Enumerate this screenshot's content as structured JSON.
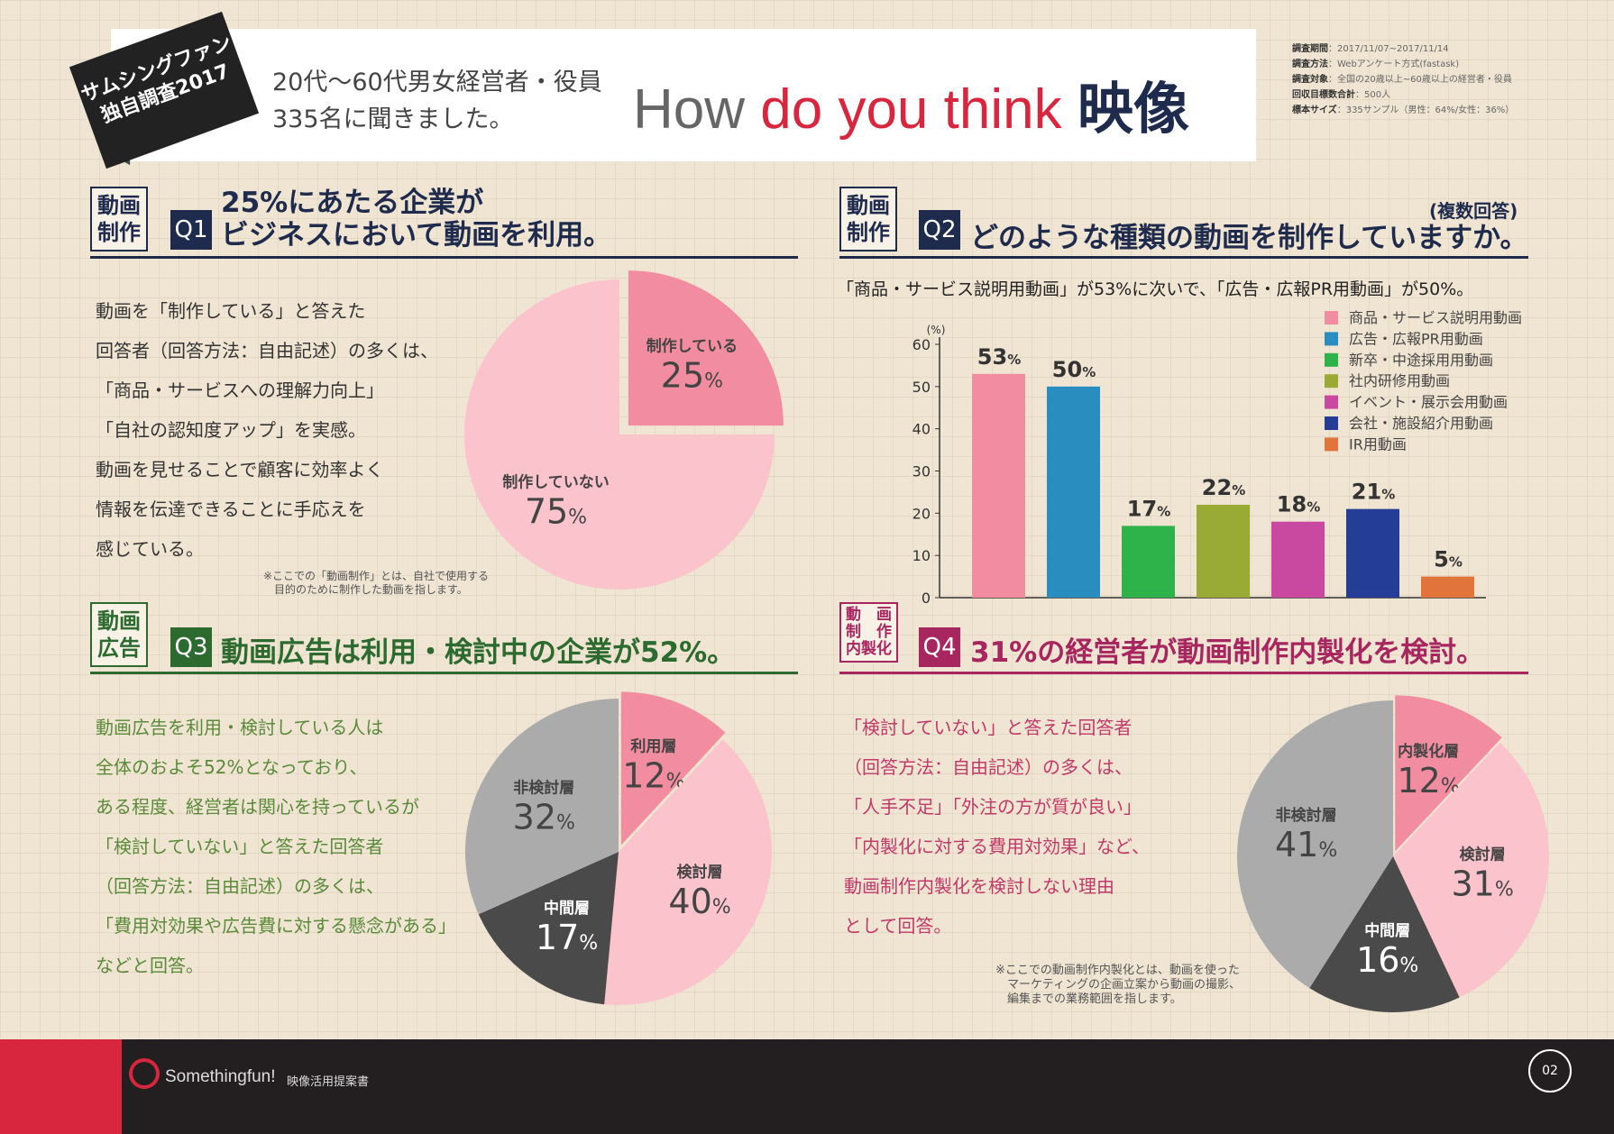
{
  "header": {
    "badge": "サムシングファン独自調査2017",
    "lead": [
      "20代～60代男女経営者・役員",
      "335名に聞きました。"
    ],
    "title": {
      "w1": "How ",
      "w2": "do you",
      "w3": " think",
      "w4": "映像"
    }
  },
  "survey": [
    {
      "k": "調査期間",
      "v": "2017/11/07~2017/11/14"
    },
    {
      "k": "調査方法",
      "v": "Webアンケート方式(fastask)"
    },
    {
      "k": "調査対象",
      "v": "全国の20歳以上~60歳以上の経営者・役員"
    },
    {
      "k": "回収目標数合計",
      "v": "500人"
    },
    {
      "k": "標本サイズ",
      "v": "335サンプル（男性：64%/女性：36%）"
    }
  ],
  "colors": {
    "navy": "#1f2b4d",
    "green": "#2d6a2f",
    "magenta": "#a8265f",
    "pink_dark": "#f28ca0",
    "pink_light": "#fbc3cc",
    "gray_dark": "#4a4a4a",
    "gray_light": "#ababab",
    "red": "#d7263d"
  },
  "q1": {
    "tag": [
      "動画",
      "制作"
    ],
    "num": "Q1",
    "title": [
      "25%にあたる企業が",
      "ビジネスにおいて動画を利用。"
    ],
    "body": [
      "動画を「制作している」と答えた",
      "回答者（回答方法：自由記述）の多くは、",
      "「商品・サービスへの理解力向上」",
      "「自社の認知度アップ」を実感。",
      "動画を見せることで顧客に効率よく",
      "情報を伝達できることに手応えを",
      "感じている。"
    ],
    "note": "※ここでの「動画制作」とは、自社で使用する\n　目的のために制作した動画を指します。"
  },
  "q2": {
    "tag": [
      "動画",
      "制作"
    ],
    "num": "Q2",
    "title": "どのような種類の動画を制作していますか。",
    "multi": "(複数回答)",
    "subtitle": "「商品・サービス説明用動画」が53%に次いで、「広告・広報PR用動画」が50%。"
  },
  "q3": {
    "tag": [
      "動画",
      "広告"
    ],
    "num": "Q3",
    "title": "動画広告は利用・検討中の企業が52%。",
    "body": [
      "動画広告を利用・検討している人は",
      "全体のおよそ52%となっており、",
      "ある程度、経営者は関心を持っているが",
      "「検討していない」と答えた回答者",
      "（回答方法：自由記述）の多くは、",
      "「費用対効果や広告費に対する懸念がある」",
      "などと回答。"
    ]
  },
  "q4": {
    "tag": [
      "動　画",
      "制　作",
      "内製化"
    ],
    "num": "Q4",
    "title": "31%の経営者が動画制作内製化を検討。",
    "body": [
      "「検討していない」と答えた回答者",
      "（回答方法：自由記述）の多くは、",
      "「人手不足」「外注の方が質が良い」",
      "「内製化に対する費用対効果」など、",
      "動画制作内製化を検討しない理由",
      "として回答。"
    ],
    "note": "※ここでの動画制作内製化とは、動画を使った\n　マーケティングの企画立案から動画の撮影、\n　編集までの業務範囲を指します。"
  },
  "chart_data": [
    {
      "type": "pie",
      "slices": [
        {
          "label": "制作している",
          "value": 25,
          "color": "#f28ca0"
        },
        {
          "label": "制作していない",
          "value": 75,
          "color": "#fbc3cc"
        }
      ]
    },
    {
      "type": "bar",
      "ylabel": "(%)",
      "ylim": [
        0,
        60
      ],
      "yticks": [
        0,
        10,
        20,
        30,
        40,
        50,
        60
      ],
      "legend_position": "top-right",
      "categories": [
        "商品・サービス説明用動画",
        "広告・広報PR用動画",
        "新卒・中途採用用動画",
        "社内研修用動画",
        "イベント・展示会用動画",
        "会社・施設紹介用動画",
        "IR用動画"
      ],
      "values": [
        53,
        50,
        17,
        22,
        18,
        21,
        5
      ],
      "colors": [
        "#f28ca0",
        "#2a8dbf",
        "#2eb34a",
        "#9aab35",
        "#c949a0",
        "#243d96",
        "#e0743a"
      ]
    },
    {
      "type": "pie",
      "slices": [
        {
          "label": "利用層",
          "value": 12,
          "color": "#f28ca0"
        },
        {
          "label": "検討層",
          "value": 40,
          "color": "#fbc3cc"
        },
        {
          "label": "中間層",
          "value": 17,
          "color": "#4a4a4a"
        },
        {
          "label": "非検討層",
          "value": 32,
          "color": "#ababab"
        }
      ]
    },
    {
      "type": "pie",
      "slices": [
        {
          "label": "内製化層",
          "value": 12,
          "color": "#f28ca0"
        },
        {
          "label": "検討層",
          "value": 31,
          "color": "#fbc3cc"
        },
        {
          "label": "中間層",
          "value": 16,
          "color": "#4a4a4a"
        },
        {
          "label": "非検討層",
          "value": 41,
          "color": "#ababab"
        }
      ]
    }
  ],
  "footer": {
    "brand": "Somethingfun!",
    "doc": "映像活用提案書",
    "page": "02"
  }
}
